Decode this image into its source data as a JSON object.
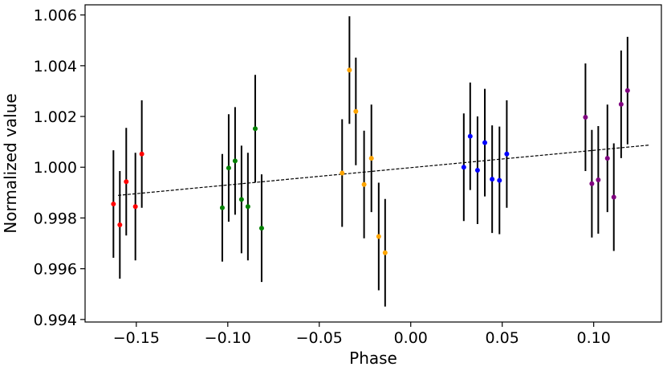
{
  "chart_data": {
    "type": "scatter",
    "xlabel": "Phase",
    "ylabel": "Normalized value",
    "xlim": [
      -0.178,
      0.137
    ],
    "ylim": [
      0.9939,
      1.0064
    ],
    "x_ticks": [
      -0.15,
      -0.1,
      -0.05,
      0.0,
      0.05,
      0.1
    ],
    "x_tick_labels": [
      "−0.15",
      "−0.10",
      "−0.05",
      "0.00",
      "0.05",
      "0.10"
    ],
    "y_ticks": [
      0.994,
      0.996,
      0.998,
      1.0,
      1.002,
      1.004,
      1.006
    ],
    "y_tick_labels": [
      "0.994",
      "0.996",
      "0.998",
      "1.000",
      "1.002",
      "1.004",
      "1.006"
    ],
    "grid": false,
    "trend_line": {
      "x": [
        -0.16,
        0.13
      ],
      "y": [
        0.99889,
        1.00087
      ],
      "color": "#000000",
      "style": "dashed"
    },
    "errorbar_color": "#000000",
    "series": [
      {
        "color": "#ff0000",
        "points": [
          {
            "x": -0.1625,
            "y": 0.99855,
            "err": 0.00212
          },
          {
            "x": -0.159,
            "y": 0.99773,
            "err": 0.00212
          },
          {
            "x": -0.1555,
            "y": 0.99943,
            "err": 0.00212
          },
          {
            "x": -0.1505,
            "y": 0.99845,
            "err": 0.00212
          },
          {
            "x": -0.147,
            "y": 1.00052,
            "err": 0.00212
          }
        ]
      },
      {
        "color": "#008000",
        "points": [
          {
            "x": -0.103,
            "y": 0.9984,
            "err": 0.00212
          },
          {
            "x": -0.0995,
            "y": 0.99997,
            "err": 0.00212
          },
          {
            "x": -0.096,
            "y": 1.00025,
            "err": 0.00212
          },
          {
            "x": -0.0925,
            "y": 0.99873,
            "err": 0.00212
          },
          {
            "x": -0.089,
            "y": 0.99845,
            "err": 0.00212
          },
          {
            "x": -0.085,
            "y": 1.00152,
            "err": 0.00212
          },
          {
            "x": -0.0815,
            "y": 0.9976,
            "err": 0.00212
          }
        ]
      },
      {
        "color": "#ffa500",
        "points": [
          {
            "x": -0.0375,
            "y": 0.99977,
            "err": 0.00212
          },
          {
            "x": -0.0335,
            "y": 1.00383,
            "err": 0.00212
          },
          {
            "x": -0.03,
            "y": 1.0022,
            "err": 0.00212
          },
          {
            "x": -0.0255,
            "y": 0.99932,
            "err": 0.00212
          },
          {
            "x": -0.0215,
            "y": 1.00035,
            "err": 0.00212
          },
          {
            "x": -0.0175,
            "y": 0.99727,
            "err": 0.00212
          },
          {
            "x": -0.014,
            "y": 0.99663,
            "err": 0.00212
          }
        ]
      },
      {
        "color": "#0000ff",
        "points": [
          {
            "x": 0.029,
            "y": 1.0,
            "err": 0.00212
          },
          {
            "x": 0.0325,
            "y": 1.00122,
            "err": 0.00212
          },
          {
            "x": 0.0365,
            "y": 0.99988,
            "err": 0.00212
          },
          {
            "x": 0.0405,
            "y": 1.00097,
            "err": 0.00212
          },
          {
            "x": 0.0445,
            "y": 0.99953,
            "err": 0.00212
          },
          {
            "x": 0.0485,
            "y": 0.99948,
            "err": 0.00212
          },
          {
            "x": 0.0525,
            "y": 1.00052,
            "err": 0.00212
          }
        ]
      },
      {
        "color": "#800080",
        "points": [
          {
            "x": 0.0955,
            "y": 1.00197,
            "err": 0.00212
          },
          {
            "x": 0.099,
            "y": 0.99935,
            "err": 0.00212
          },
          {
            "x": 0.1025,
            "y": 0.9995,
            "err": 0.00212
          },
          {
            "x": 0.1075,
            "y": 1.00035,
            "err": 0.00212
          },
          {
            "x": 0.111,
            "y": 0.99882,
            "err": 0.00212
          },
          {
            "x": 0.115,
            "y": 1.00248,
            "err": 0.00212
          },
          {
            "x": 0.1185,
            "y": 1.00302,
            "err": 0.00212
          }
        ]
      }
    ]
  }
}
